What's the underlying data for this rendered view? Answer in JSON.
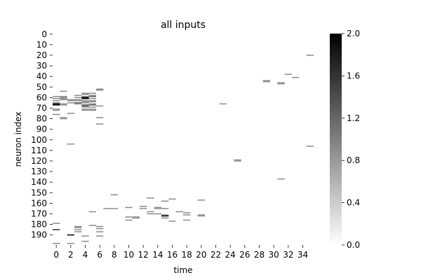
{
  "chart_data": {
    "type": "heatmap",
    "title": "all inputs",
    "xlabel": "time",
    "ylabel": "neuron index",
    "xlim": [
      0,
      36
    ],
    "ylim": [
      0,
      200
    ],
    "x_tick_labels": [
      "0",
      "2",
      "4",
      "6",
      "8",
      "10",
      "12",
      "14",
      "16",
      "18",
      "20",
      "22",
      "24",
      "26",
      "28",
      "30",
      "32",
      "34"
    ],
    "y_tick_labels": [
      "0",
      "10",
      "20",
      "30",
      "40",
      "50",
      "60",
      "70",
      "80",
      "90",
      "100",
      "110",
      "120",
      "130",
      "140",
      "150",
      "160",
      "170",
      "180",
      "190"
    ],
    "colorbar": {
      "min": 0.0,
      "max": 2.0,
      "tick_labels": [
        "0.0",
        "0.4",
        "0.8",
        "1.2",
        "1.6",
        "2.0"
      ],
      "colormap": "white-to-black",
      "color_low": "#ffffff",
      "color_high": "#000000"
    },
    "grid": false,
    "cells": [
      {
        "t": 0,
        "n": 59,
        "v": 0.9
      },
      {
        "t": 0,
        "n": 61,
        "v": 0.9
      },
      {
        "t": 0,
        "n": 63,
        "v": 0.9
      },
      {
        "t": 0,
        "n": 65,
        "v": 0.9
      },
      {
        "t": 0,
        "n": 66,
        "v": 2.0
      },
      {
        "t": 0,
        "n": 67,
        "v": 2.0
      },
      {
        "t": 0,
        "n": 71,
        "v": 0.9
      },
      {
        "t": 0,
        "n": 72,
        "v": 0.9
      },
      {
        "t": 0,
        "n": 76,
        "v": 0.9
      },
      {
        "t": 0,
        "n": 179,
        "v": 0.9
      },
      {
        "t": 0,
        "n": 185,
        "v": 1.6
      },
      {
        "t": 0,
        "n": 198,
        "v": 0.9
      },
      {
        "t": 1,
        "n": 54,
        "v": 0.9
      },
      {
        "t": 1,
        "n": 59,
        "v": 0.9
      },
      {
        "t": 1,
        "n": 60,
        "v": 0.9
      },
      {
        "t": 1,
        "n": 61,
        "v": 0.9
      },
      {
        "t": 1,
        "n": 62,
        "v": 0.9
      },
      {
        "t": 1,
        "n": 66,
        "v": 0.9
      },
      {
        "t": 1,
        "n": 67,
        "v": 0.9
      },
      {
        "t": 1,
        "n": 79,
        "v": 0.9
      },
      {
        "t": 1,
        "n": 80,
        "v": 0.9
      },
      {
        "t": 2,
        "n": 62,
        "v": 0.9
      },
      {
        "t": 2,
        "n": 63,
        "v": 0.9
      },
      {
        "t": 2,
        "n": 65,
        "v": 0.9
      },
      {
        "t": 2,
        "n": 75,
        "v": 0.9
      },
      {
        "t": 2,
        "n": 104,
        "v": 0.9
      },
      {
        "t": 2,
        "n": 190,
        "v": 2.0
      },
      {
        "t": 2,
        "n": 198,
        "v": 0.9
      },
      {
        "t": 3,
        "n": 58,
        "v": 0.9
      },
      {
        "t": 3,
        "n": 60,
        "v": 0.9
      },
      {
        "t": 3,
        "n": 62,
        "v": 0.9
      },
      {
        "t": 3,
        "n": 63,
        "v": 0.9
      },
      {
        "t": 3,
        "n": 65,
        "v": 1.3
      },
      {
        "t": 3,
        "n": 66,
        "v": 0.9
      },
      {
        "t": 3,
        "n": 182,
        "v": 0.9
      },
      {
        "t": 3,
        "n": 183,
        "v": 0.9
      },
      {
        "t": 3,
        "n": 185,
        "v": 0.9
      },
      {
        "t": 3,
        "n": 187,
        "v": 0.9
      },
      {
        "t": 4,
        "n": 56,
        "v": 0.9
      },
      {
        "t": 4,
        "n": 57,
        "v": 0.9
      },
      {
        "t": 4,
        "n": 59,
        "v": 0.9
      },
      {
        "t": 4,
        "n": 60,
        "v": 2.0
      },
      {
        "t": 4,
        "n": 61,
        "v": 2.0
      },
      {
        "t": 4,
        "n": 63,
        "v": 0.9
      },
      {
        "t": 4,
        "n": 64,
        "v": 0.9
      },
      {
        "t": 4,
        "n": 65,
        "v": 0.9
      },
      {
        "t": 4,
        "n": 67,
        "v": 1.3
      },
      {
        "t": 4,
        "n": 68,
        "v": 1.3
      },
      {
        "t": 4,
        "n": 69,
        "v": 0.9
      },
      {
        "t": 4,
        "n": 71,
        "v": 0.9
      },
      {
        "t": 4,
        "n": 72,
        "v": 0.9
      },
      {
        "t": 4,
        "n": 191,
        "v": 0.9
      },
      {
        "t": 4,
        "n": 196,
        "v": 0.9
      },
      {
        "t": 5,
        "n": 56,
        "v": 0.9
      },
      {
        "t": 5,
        "n": 58,
        "v": 0.9
      },
      {
        "t": 5,
        "n": 59,
        "v": 1.3
      },
      {
        "t": 5,
        "n": 61,
        "v": 0.9
      },
      {
        "t": 5,
        "n": 63,
        "v": 0.9
      },
      {
        "t": 5,
        "n": 64,
        "v": 0.9
      },
      {
        "t": 5,
        "n": 66,
        "v": 0.9
      },
      {
        "t": 5,
        "n": 67,
        "v": 1.3
      },
      {
        "t": 5,
        "n": 69,
        "v": 0.9
      },
      {
        "t": 5,
        "n": 71,
        "v": 0.9
      },
      {
        "t": 5,
        "n": 72,
        "v": 0.9
      },
      {
        "t": 5,
        "n": 168,
        "v": 0.9
      },
      {
        "t": 5,
        "n": 181,
        "v": 0.9
      },
      {
        "t": 6,
        "n": 52,
        "v": 0.9
      },
      {
        "t": 6,
        "n": 53,
        "v": 0.9
      },
      {
        "t": 6,
        "n": 68,
        "v": 0.9
      },
      {
        "t": 6,
        "n": 79,
        "v": 0.9
      },
      {
        "t": 6,
        "n": 85,
        "v": 0.9
      },
      {
        "t": 6,
        "n": 182,
        "v": 0.9
      },
      {
        "t": 6,
        "n": 184,
        "v": 0.9
      },
      {
        "t": 6,
        "n": 187,
        "v": 0.9
      },
      {
        "t": 6,
        "n": 191,
        "v": 0.9
      },
      {
        "t": 7,
        "n": 165,
        "v": 0.9
      },
      {
        "t": 8,
        "n": 152,
        "v": 0.9
      },
      {
        "t": 8,
        "n": 165,
        "v": 0.9
      },
      {
        "t": 10,
        "n": 164,
        "v": 0.9
      },
      {
        "t": 10,
        "n": 173,
        "v": 0.9
      },
      {
        "t": 10,
        "n": 176,
        "v": 0.9
      },
      {
        "t": 11,
        "n": 173,
        "v": 0.9
      },
      {
        "t": 11,
        "n": 174,
        "v": 0.9
      },
      {
        "t": 12,
        "n": 163,
        "v": 0.9
      },
      {
        "t": 12,
        "n": 165,
        "v": 0.9
      },
      {
        "t": 13,
        "n": 155,
        "v": 0.9
      },
      {
        "t": 13,
        "n": 168,
        "v": 0.9
      },
      {
        "t": 13,
        "n": 170,
        "v": 0.9
      },
      {
        "t": 14,
        "n": 164,
        "v": 0.9
      },
      {
        "t": 14,
        "n": 165,
        "v": 0.9
      },
      {
        "t": 14,
        "n": 170,
        "v": 0.9
      },
      {
        "t": 15,
        "n": 158,
        "v": 0.9
      },
      {
        "t": 15,
        "n": 165,
        "v": 0.9
      },
      {
        "t": 15,
        "n": 171,
        "v": 0.9
      },
      {
        "t": 15,
        "n": 172,
        "v": 2.0
      },
      {
        "t": 15,
        "n": 174,
        "v": 0.9
      },
      {
        "t": 16,
        "n": 156,
        "v": 0.9
      },
      {
        "t": 16,
        "n": 177,
        "v": 0.9
      },
      {
        "t": 17,
        "n": 168,
        "v": 0.9
      },
      {
        "t": 18,
        "n": 169,
        "v": 0.9
      },
      {
        "t": 18,
        "n": 171,
        "v": 0.9
      },
      {
        "t": 18,
        "n": 176,
        "v": 0.9
      },
      {
        "t": 20,
        "n": 157,
        "v": 0.9
      },
      {
        "t": 20,
        "n": 171,
        "v": 0.9
      },
      {
        "t": 20,
        "n": 172,
        "v": 0.9
      },
      {
        "t": 23,
        "n": 66,
        "v": 0.9
      },
      {
        "t": 25,
        "n": 119,
        "v": 0.9
      },
      {
        "t": 25,
        "n": 120,
        "v": 0.9
      },
      {
        "t": 29,
        "n": 44,
        "v": 0.9
      },
      {
        "t": 29,
        "n": 45,
        "v": 0.9
      },
      {
        "t": 31,
        "n": 46,
        "v": 0.9
      },
      {
        "t": 31,
        "n": 47,
        "v": 0.9
      },
      {
        "t": 31,
        "n": 137,
        "v": 0.9
      },
      {
        "t": 32,
        "n": 38,
        "v": 0.9
      },
      {
        "t": 33,
        "n": 41,
        "v": 0.9
      },
      {
        "t": 35,
        "n": 20,
        "v": 0.9
      },
      {
        "t": 35,
        "n": 106,
        "v": 0.9
      }
    ]
  }
}
